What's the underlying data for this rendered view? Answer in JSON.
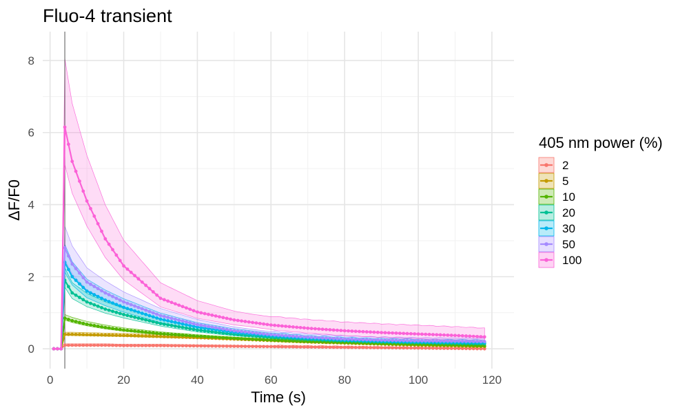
{
  "chart_data": {
    "type": "line",
    "title": "Fluo-4 transient",
    "xlabel": "Time (s)",
    "ylabel": "ΔF/F0",
    "xlim": [
      -2,
      126
    ],
    "ylim": [
      -0.55,
      8.8
    ],
    "x_ticks": [
      0,
      20,
      40,
      60,
      80,
      100,
      120
    ],
    "y_ticks": [
      0,
      2,
      4,
      6,
      8
    ],
    "grid": true,
    "vline_x": 4,
    "legend": {
      "title": "405 nm power (%)",
      "position": "right"
    },
    "x": [
      1,
      2,
      3,
      4,
      6,
      10,
      15,
      20,
      30,
      40,
      50,
      60,
      70,
      80,
      90,
      100,
      110,
      118
    ],
    "series": [
      {
        "name": "2",
        "color": "#F8766D",
        "values": [
          0,
          0,
          0,
          0.1,
          0.1,
          0.1,
          0.1,
          0.09,
          0.09,
          0.08,
          0.07,
          0.06,
          0.05,
          0.04,
          0.03,
          0.02,
          0.01,
          0.0
        ],
        "band": 0.04
      },
      {
        "name": "5",
        "color": "#C49A00",
        "values": [
          0,
          0,
          0,
          0.4,
          0.4,
          0.39,
          0.38,
          0.37,
          0.34,
          0.31,
          0.27,
          0.23,
          0.19,
          0.16,
          0.13,
          0.1,
          0.08,
          0.06
        ],
        "band": 0.06
      },
      {
        "name": "10",
        "color": "#53B400",
        "values": [
          0,
          0,
          0,
          0.85,
          0.78,
          0.68,
          0.59,
          0.52,
          0.42,
          0.35,
          0.29,
          0.24,
          0.2,
          0.17,
          0.14,
          0.12,
          0.1,
          0.08
        ],
        "band": 0.1
      },
      {
        "name": "20",
        "color": "#00C094",
        "values": [
          0,
          0,
          0,
          1.9,
          1.55,
          1.3,
          1.1,
          0.95,
          0.7,
          0.52,
          0.4,
          0.32,
          0.26,
          0.22,
          0.19,
          0.17,
          0.15,
          0.14
        ],
        "band": 0.35
      },
      {
        "name": "30",
        "color": "#00B6EB",
        "values": [
          0,
          0,
          0,
          2.4,
          2.0,
          1.6,
          1.35,
          1.15,
          0.82,
          0.6,
          0.46,
          0.36,
          0.29,
          0.24,
          0.21,
          0.19,
          0.18,
          0.17
        ],
        "band": 0.5
      },
      {
        "name": "50",
        "color": "#A58AFF",
        "values": [
          0,
          0,
          0,
          2.8,
          2.35,
          1.85,
          1.55,
          1.3,
          0.92,
          0.67,
          0.5,
          0.39,
          0.32,
          0.27,
          0.24,
          0.22,
          0.21,
          0.2
        ],
        "band": 0.6
      },
      {
        "name": "100",
        "color": "#FB61D7",
        "values": [
          0,
          0,
          0,
          6.15,
          5.2,
          4.1,
          3.05,
          2.3,
          1.4,
          1.02,
          0.8,
          0.66,
          0.57,
          0.5,
          0.45,
          0.41,
          0.37,
          0.33
        ],
        "band": 1.9
      }
    ]
  }
}
